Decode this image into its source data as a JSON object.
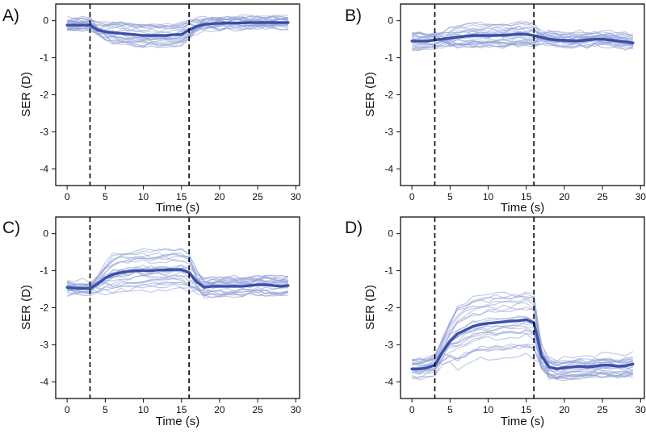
{
  "figure": {
    "vlines_x": [
      3,
      16
    ],
    "colors": {
      "mean": "#3a4fa8",
      "trial": "#8f9fd6",
      "axis": "#111111",
      "vline": "#000000"
    }
  },
  "chart_data": [
    {
      "panel_label": "A)",
      "type": "line",
      "xlabel": "Time (s)",
      "ylabel": "SER (D)",
      "xlim": [
        -1.5,
        30.5
      ],
      "ylim": [
        -4.45,
        0.45
      ],
      "xticks": [
        0,
        5,
        10,
        15,
        20,
        25,
        30
      ],
      "yticks": [
        0,
        -1,
        -2,
        -3,
        -4
      ],
      "trial_count": 25,
      "trial_spread": [
        0.18,
        0.28,
        0.16
      ],
      "mean": {
        "x": [
          0,
          1,
          2,
          3,
          4,
          5,
          6,
          7,
          8,
          9,
          10,
          11,
          12,
          13,
          14,
          15,
          16,
          17,
          18,
          19,
          20,
          21,
          22,
          23,
          24,
          25,
          26,
          27,
          28,
          29
        ],
        "y": [
          -0.12,
          -0.12,
          -0.12,
          -0.12,
          -0.25,
          -0.3,
          -0.32,
          -0.34,
          -0.36,
          -0.38,
          -0.4,
          -0.4,
          -0.4,
          -0.4,
          -0.38,
          -0.37,
          -0.25,
          -0.15,
          -0.1,
          -0.08,
          -0.07,
          -0.06,
          -0.06,
          -0.06,
          -0.05,
          -0.05,
          -0.05,
          -0.05,
          -0.05,
          -0.05
        ]
      }
    },
    {
      "panel_label": "B)",
      "type": "line",
      "xlabel": "Time (s)",
      "ylabel": "SER (D)",
      "xlim": [
        -1.5,
        30.5
      ],
      "ylim": [
        -4.45,
        0.45
      ],
      "xticks": [
        0,
        5,
        10,
        15,
        20,
        25,
        30
      ],
      "yticks": [
        0,
        -1,
        -2,
        -3,
        -4
      ],
      "trial_count": 25,
      "trial_spread": [
        0.22,
        0.3,
        0.25
      ],
      "mean": {
        "x": [
          0,
          1,
          2,
          3,
          4,
          5,
          6,
          7,
          8,
          9,
          10,
          11,
          12,
          13,
          14,
          15,
          16,
          17,
          18,
          19,
          20,
          21,
          22,
          23,
          24,
          25,
          26,
          27,
          28,
          29
        ],
        "y": [
          -0.55,
          -0.55,
          -0.55,
          -0.52,
          -0.5,
          -0.47,
          -0.44,
          -0.42,
          -0.4,
          -0.4,
          -0.4,
          -0.4,
          -0.39,
          -0.38,
          -0.36,
          -0.37,
          -0.4,
          -0.45,
          -0.5,
          -0.52,
          -0.53,
          -0.54,
          -0.54,
          -0.52,
          -0.5,
          -0.5,
          -0.52,
          -0.55,
          -0.57,
          -0.6
        ]
      }
    },
    {
      "panel_label": "C)",
      "type": "line",
      "xlabel": "Time (s)",
      "ylabel": "SER (D)",
      "xlim": [
        -1.5,
        30.5
      ],
      "ylim": [
        -4.45,
        0.45
      ],
      "xticks": [
        0,
        5,
        10,
        15,
        20,
        25,
        30
      ],
      "yticks": [
        0,
        -1,
        -2,
        -3,
        -4
      ],
      "trial_count": 25,
      "trial_spread": [
        0.22,
        0.55,
        0.25
      ],
      "mean": {
        "x": [
          0,
          1,
          2,
          3,
          4,
          5,
          6,
          7,
          8,
          9,
          10,
          11,
          12,
          13,
          14,
          15,
          16,
          17,
          18,
          19,
          20,
          21,
          22,
          23,
          24,
          25,
          26,
          27,
          28,
          29
        ],
        "y": [
          -1.45,
          -1.47,
          -1.48,
          -1.48,
          -1.35,
          -1.2,
          -1.1,
          -1.05,
          -1.02,
          -1.0,
          -1.0,
          -1.0,
          -0.98,
          -0.98,
          -0.97,
          -0.97,
          -1.05,
          -1.3,
          -1.45,
          -1.42,
          -1.42,
          -1.42,
          -1.42,
          -1.42,
          -1.4,
          -1.38,
          -1.38,
          -1.4,
          -1.42,
          -1.4
        ]
      }
    },
    {
      "panel_label": "D)",
      "type": "line",
      "xlabel": "Time (s)",
      "ylabel": "SER (D)",
      "xlim": [
        -1.5,
        30.5
      ],
      "ylim": [
        -4.45,
        0.45
      ],
      "xticks": [
        0,
        5,
        10,
        15,
        20,
        25,
        30
      ],
      "yticks": [
        0,
        -1,
        -2,
        -3,
        -4
      ],
      "trial_count": 25,
      "trial_spread": [
        0.3,
        0.95,
        0.3
      ],
      "mean": {
        "x": [
          0,
          1,
          2,
          3,
          4,
          5,
          6,
          7,
          8,
          9,
          10,
          11,
          12,
          13,
          14,
          15,
          16,
          17,
          18,
          19,
          20,
          21,
          22,
          23,
          24,
          25,
          26,
          27,
          28,
          29
        ],
        "y": [
          -3.65,
          -3.65,
          -3.62,
          -3.55,
          -3.2,
          -2.9,
          -2.7,
          -2.6,
          -2.5,
          -2.45,
          -2.42,
          -2.4,
          -2.38,
          -2.36,
          -2.35,
          -2.32,
          -2.4,
          -3.3,
          -3.6,
          -3.65,
          -3.62,
          -3.6,
          -3.58,
          -3.6,
          -3.58,
          -3.55,
          -3.55,
          -3.58,
          -3.57,
          -3.52
        ]
      }
    }
  ]
}
